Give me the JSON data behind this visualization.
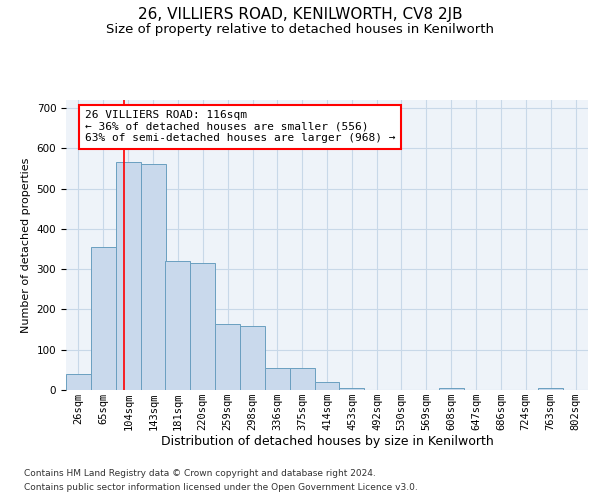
{
  "title": "26, VILLIERS ROAD, KENILWORTH, CV8 2JB",
  "subtitle": "Size of property relative to detached houses in Kenilworth",
  "xlabel": "Distribution of detached houses by size in Kenilworth",
  "ylabel": "Number of detached properties",
  "footer_line1": "Contains HM Land Registry data © Crown copyright and database right 2024.",
  "footer_line2": "Contains public sector information licensed under the Open Government Licence v3.0.",
  "bar_edges": [
    26,
    65,
    104,
    143,
    181,
    220,
    259,
    298,
    336,
    375,
    414,
    453,
    492,
    530,
    569,
    608,
    647,
    686,
    724,
    763,
    802
  ],
  "bar_heights": [
    40,
    355,
    565,
    560,
    320,
    315,
    165,
    160,
    55,
    55,
    20,
    5,
    0,
    0,
    0,
    5,
    0,
    0,
    0,
    5,
    0
  ],
  "bar_color": "#c9d9ec",
  "bar_edge_color": "#6a9fc0",
  "grid_color": "#c8d8e8",
  "background_color": "#eef3f9",
  "annotation_text": "26 VILLIERS ROAD: 116sqm\n← 36% of detached houses are smaller (556)\n63% of semi-detached houses are larger (968) →",
  "annotation_box_color": "white",
  "annotation_box_edge_color": "red",
  "vline_x": 116,
  "vline_color": "red",
  "ylim": [
    0,
    720
  ],
  "yticks": [
    0,
    100,
    200,
    300,
    400,
    500,
    600,
    700
  ],
  "title_fontsize": 11,
  "subtitle_fontsize": 9.5,
  "xlabel_fontsize": 9,
  "ylabel_fontsize": 8,
  "annotation_fontsize": 8,
  "tick_fontsize": 7.5
}
